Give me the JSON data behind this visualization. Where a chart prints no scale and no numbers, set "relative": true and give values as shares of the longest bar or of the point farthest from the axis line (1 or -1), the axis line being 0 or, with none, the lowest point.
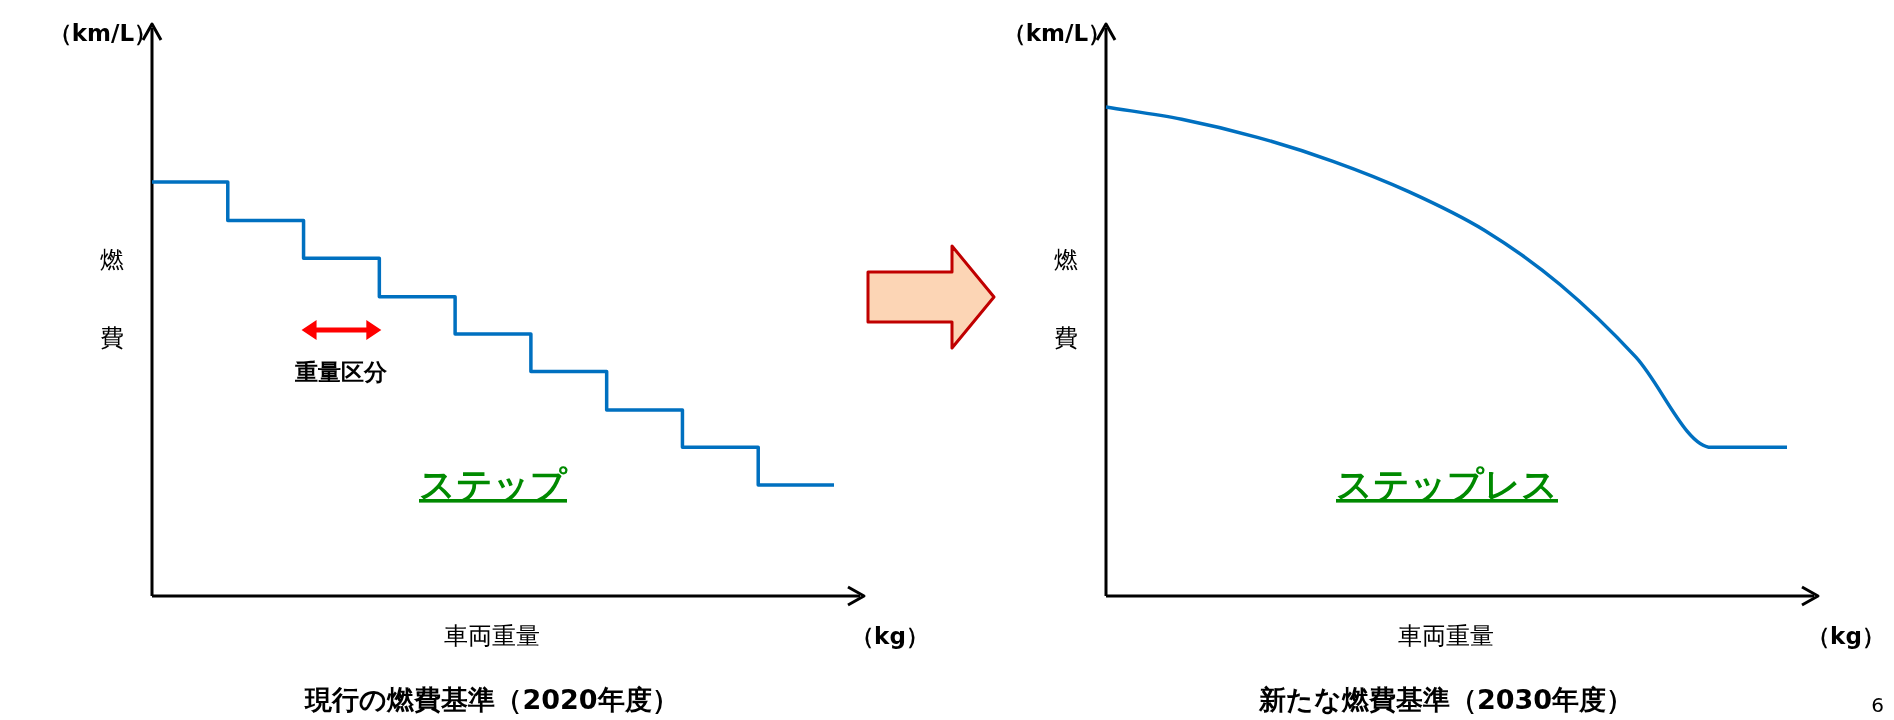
{
  "chart_data": [
    {
      "type": "step",
      "title": "現行の燃費基準（2020年度）",
      "xlabel": "車両重量",
      "ylabel": "燃費",
      "relative": true,
      "categories": [
        null,
        null,
        null,
        null,
        null,
        null,
        null,
        null,
        null,
        null
      ],
      "series": [
        {
          "color": "#0070c0",
          "values": [
            1,
            0.907,
            0.816,
            0.723,
            0.633,
            0.542,
            0.449,
            0.359,
            0.268,
            0.268
          ]
        }
      ],
      "annotations": [
        "（km/L）",
        "（kg）",
        "重量区分",
        "ステップ"
      ]
    },
    {
      "type": "line",
      "title": "新たな燃費基準（2030年度）",
      "xlabel": "車両重量",
      "ylabel": "燃費",
      "relative": true,
      "categories": [
        null,
        null,
        null,
        null,
        null,
        null,
        null,
        null,
        null,
        null
      ],
      "series": [
        {
          "color": "#0070c0",
          "values": [
            1,
            0.975,
            0.938,
            0.889,
            0.827,
            0.748,
            0.637,
            0.489,
            0.304,
            0.304
          ]
        }
      ],
      "annotations": [
        "（km/L）",
        "（kg）",
        "ステップレス",
        "6"
      ]
    }
  ]
}
